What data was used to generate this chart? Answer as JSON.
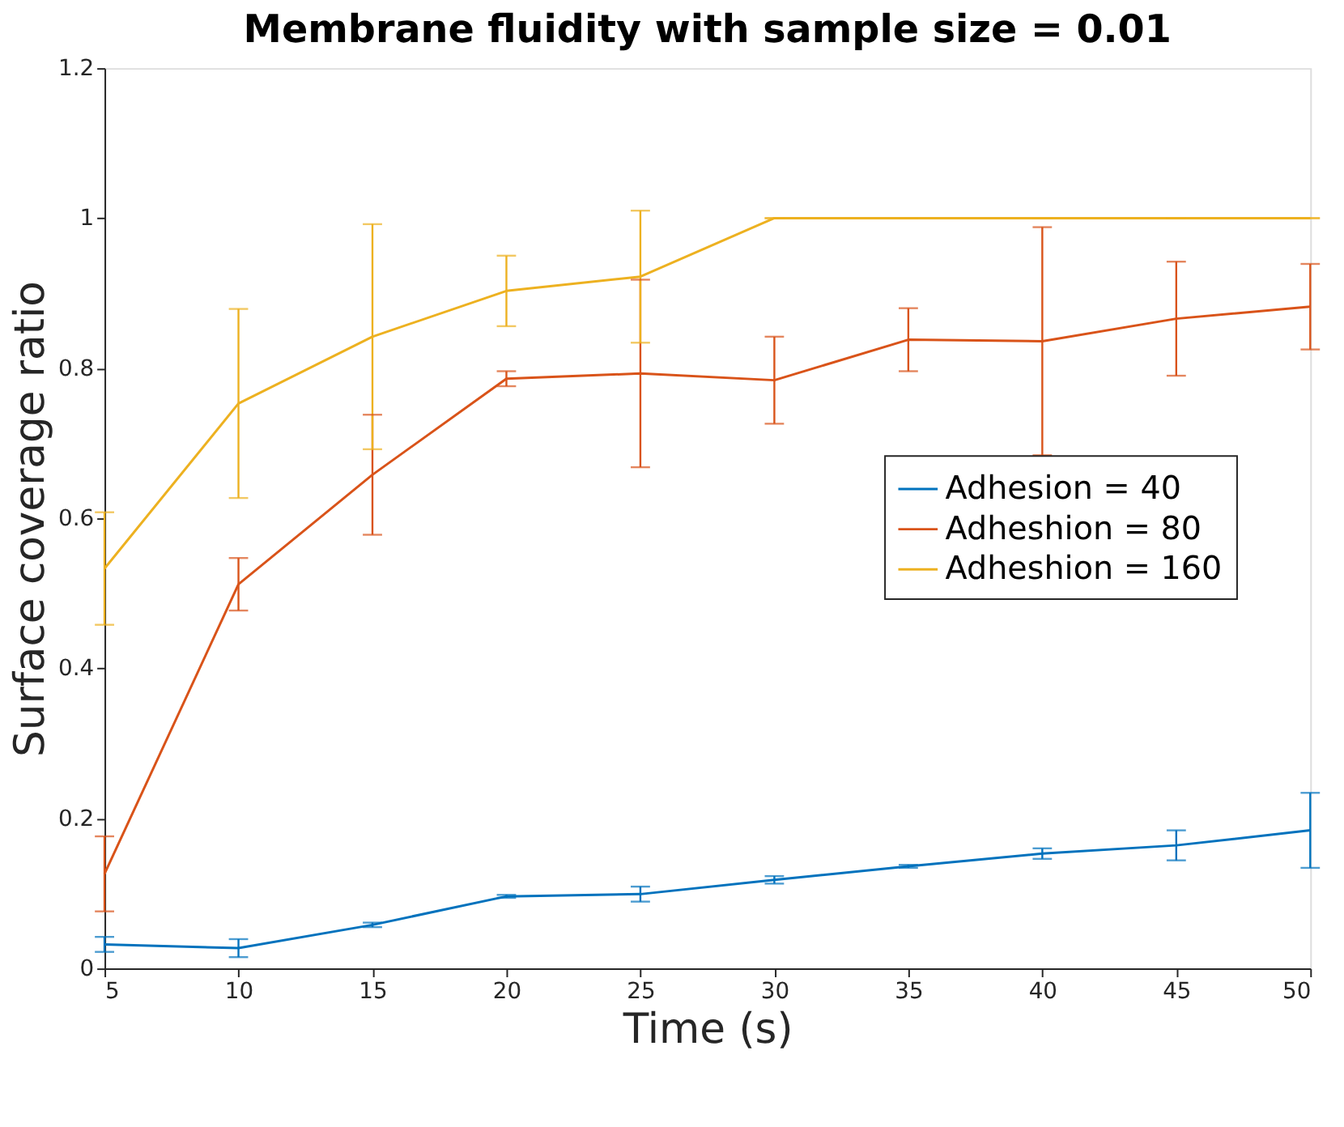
{
  "chart_data": {
    "type": "line",
    "title": "Membrane fluidity with sample size = 0.01",
    "xlabel": "Time (s)",
    "ylabel": "Surface coverage ratio",
    "x": [
      5,
      10,
      15,
      20,
      25,
      30,
      35,
      40,
      45,
      50
    ],
    "series": [
      {
        "name": "Adhesion = 40",
        "color": "#0072bd",
        "values": [
          0.032,
          0.027,
          0.058,
          0.096,
          0.099,
          0.118,
          0.136,
          0.153,
          0.164,
          0.184
        ],
        "errors": [
          0.01,
          0.012,
          0.003,
          0.002,
          0.01,
          0.005,
          0.002,
          0.007,
          0.02,
          0.05
        ]
      },
      {
        "name": "Adheshion = 80",
        "color": "#d95319",
        "values": [
          0.126,
          0.512,
          0.658,
          0.786,
          0.793,
          0.784,
          0.838,
          0.836,
          0.866,
          0.882
        ],
        "errors": [
          0.05,
          0.035,
          0.08,
          0.01,
          0.125,
          0.058,
          0.042,
          0.152,
          0.076,
          0.057
        ]
      },
      {
        "name": "Adheshion = 160",
        "color": "#edb120",
        "values": [
          0.533,
          0.753,
          0.842,
          0.903,
          0.922,
          1.0,
          1.0,
          1.0,
          1.0,
          1.0
        ],
        "errors": [
          0.075,
          0.126,
          0.15,
          0.047,
          0.088,
          0,
          0,
          0,
          0,
          0
        ]
      }
    ],
    "xlim": [
      5,
      50
    ],
    "xticks": [
      5,
      10,
      15,
      20,
      25,
      30,
      35,
      40,
      45,
      50
    ],
    "ylim": [
      0,
      1.2
    ],
    "yticks": [
      0,
      0.2,
      0.4,
      0.6,
      0.8,
      1,
      1.2
    ],
    "grid": false,
    "legend": "right",
    "marker": "none",
    "line_style": "solid"
  }
}
